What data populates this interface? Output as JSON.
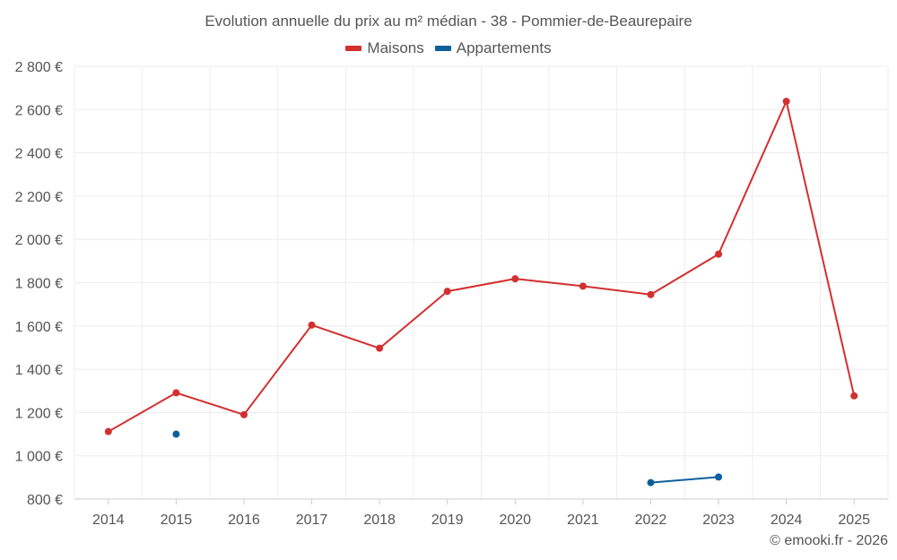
{
  "chart_data": {
    "type": "line",
    "title": "Evolution annuelle du prix au m² médian - 38 - Pommier-de-Beaurepaire",
    "xlabel": "",
    "ylabel": "",
    "x": [
      "2014",
      "2015",
      "2016",
      "2017",
      "2018",
      "2019",
      "2020",
      "2021",
      "2022",
      "2023",
      "2024",
      "2025"
    ],
    "ylim": [
      800,
      2800
    ],
    "yticks": [
      800,
      1000,
      1200,
      1400,
      1600,
      1800,
      2000,
      2200,
      2400,
      2600,
      2800
    ],
    "ytick_labels": [
      "800 €",
      "1 000 €",
      "1 200 €",
      "1 400 €",
      "1 600 €",
      "1 800 €",
      "2 000 €",
      "2 200 €",
      "2 400 €",
      "2 600 €",
      "2 800 €"
    ],
    "grid": true,
    "legend_position": "top-center",
    "series": [
      {
        "name": "Maisons",
        "color": "#d32f2f",
        "values": [
          1112,
          1291,
          1190,
          1604,
          1497,
          1760,
          1818,
          1784,
          1745,
          1932,
          2638,
          1277
        ]
      },
      {
        "name": "Appartements",
        "color": "#0d5f9c",
        "values": [
          null,
          1100,
          null,
          null,
          null,
          null,
          null,
          null,
          876,
          902,
          null,
          null
        ]
      }
    ]
  },
  "credit": "© emooki.fr - 2026"
}
